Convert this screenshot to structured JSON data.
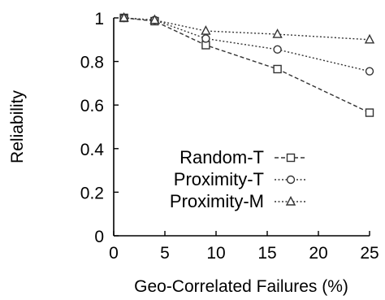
{
  "chart_data": {
    "type": "line",
    "xlabel": "Geo-Correlated Failures (%)",
    "ylabel": "Reliability",
    "xlim": [
      0,
      25
    ],
    "ylim": [
      0,
      1
    ],
    "xticks": [
      "0",
      "5",
      "10",
      "15",
      "20",
      "25"
    ],
    "yticks": [
      "0",
      "0.2",
      "0.4",
      "0.6",
      "0.8",
      "1"
    ],
    "x": [
      1,
      4,
      9,
      16,
      25
    ],
    "legend_position": "center",
    "series": [
      {
        "name": "Random-T",
        "marker": "square",
        "line_style": "dashed",
        "values": [
          1.0,
          0.985,
          0.875,
          0.765,
          0.565
        ]
      },
      {
        "name": "Proximity-T",
        "marker": "circle",
        "line_style": "dotted",
        "values": [
          1.0,
          0.99,
          0.905,
          0.855,
          0.755
        ]
      },
      {
        "name": "Proximity-M",
        "marker": "triangle",
        "line_style": "dotted",
        "values": [
          1.0,
          0.99,
          0.94,
          0.925,
          0.9
        ]
      }
    ],
    "colors": {
      "axis": "#000000",
      "series": "#333333"
    }
  }
}
